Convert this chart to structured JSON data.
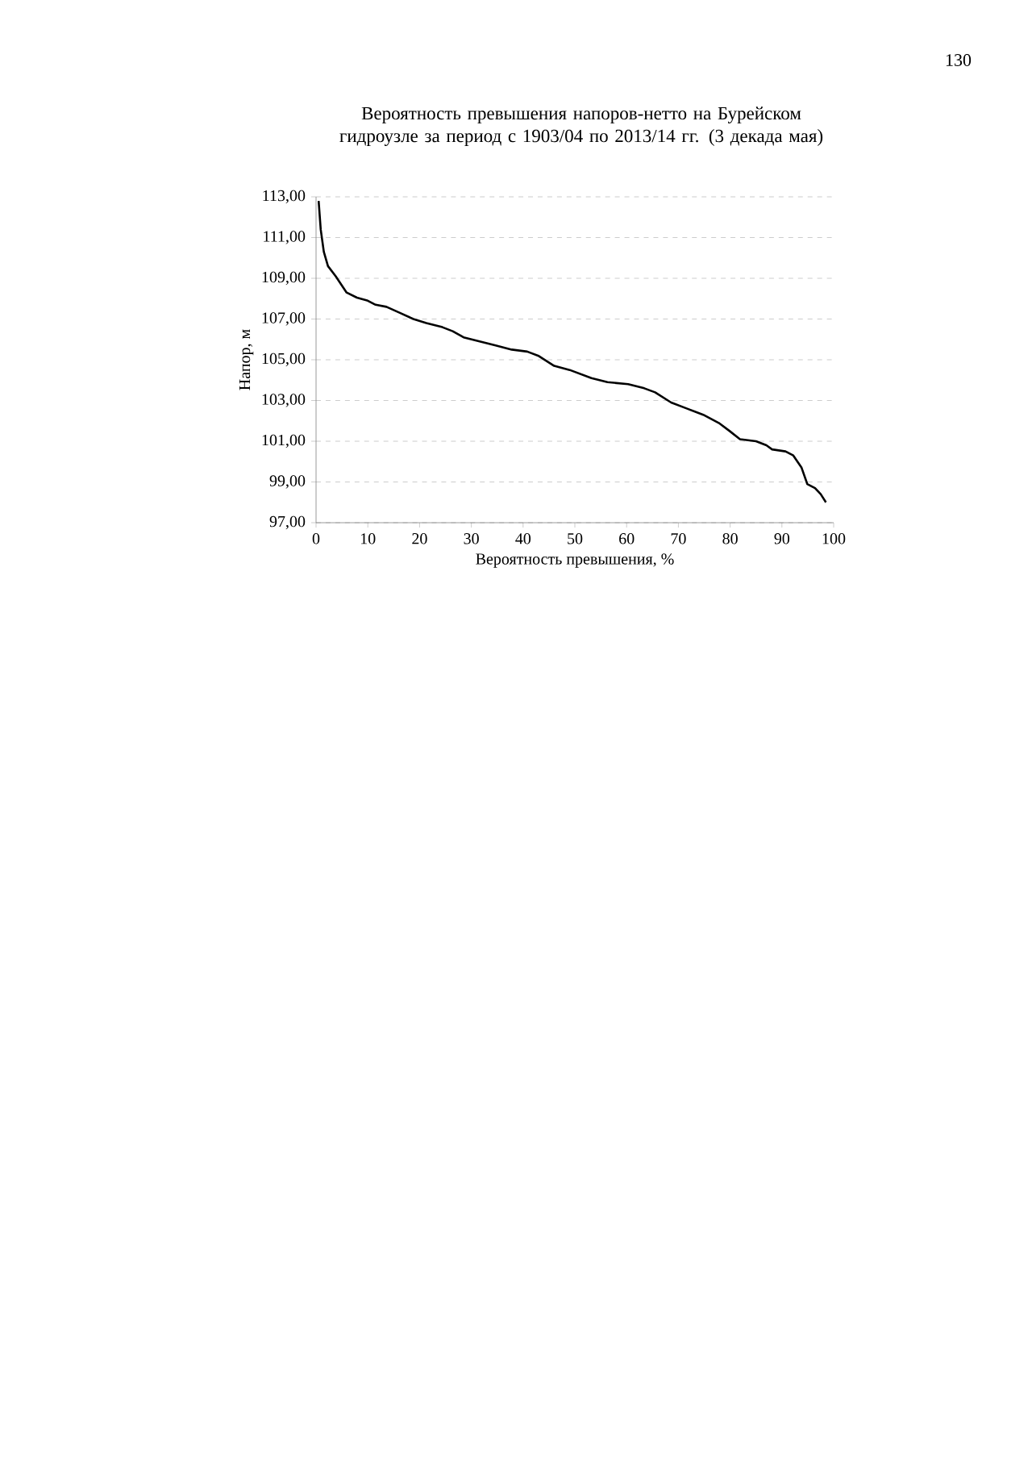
{
  "chart_data": {
    "type": "line",
    "title": "Вероятность превышения напоров-нетто на Бурейском гидроузле за период с 1903/04 по 2013/14 гг. (3 декада мая)",
    "xlabel": "Вероятность превышения, %",
    "ylabel": "Напор, м",
    "annotations": [
      "130"
    ],
    "series": [
      {
        "color": "#000000",
        "x": [
          0.5,
          0.9,
          1.5,
          2.3,
          3.8,
          5.9,
          7.9,
          10,
          11.5,
          13.6,
          16.2,
          18.8,
          21.3,
          24.4,
          26.4,
          28.5,
          31.6,
          34.7,
          37.8,
          40.8,
          42.9,
          46,
          49,
          53.2,
          56.3,
          60.3,
          63.4,
          65.5,
          68.6,
          71.7,
          74.8,
          77.8,
          79.9,
          81.9,
          85,
          87,
          88.1,
          90.7,
          92.2,
          93.8,
          94.9,
          96.4,
          97.5,
          98.5
        ],
        "values": [
          112.8,
          111.4,
          110.3,
          109.6,
          109.1,
          108.3,
          108.05,
          107.9,
          107.7,
          107.6,
          107.3,
          107.0,
          106.8,
          106.6,
          106.4,
          106.1,
          105.9,
          105.7,
          105.5,
          105.4,
          105.2,
          104.7,
          104.5,
          104.1,
          103.9,
          103.8,
          103.6,
          103.4,
          102.9,
          102.6,
          102.3,
          101.9,
          101.5,
          101.1,
          101.0,
          100.8,
          100.6,
          100.5,
          100.3,
          99.7,
          98.9,
          98.7,
          98.4,
          98.0
        ]
      }
    ],
    "xlim": [
      0,
      100
    ],
    "xticks": [
      0,
      10,
      20,
      30,
      40,
      50,
      60,
      70,
      80,
      90,
      100
    ],
    "ylim": [
      97,
      113
    ],
    "yticks": [
      {
        "value": 97,
        "label": "97,00"
      },
      {
        "value": 99,
        "label": "99,00"
      },
      {
        "value": 101,
        "label": "101,00"
      },
      {
        "value": 103,
        "label": "103,00"
      },
      {
        "value": 105,
        "label": "105,00"
      },
      {
        "value": 107,
        "label": "107,00"
      },
      {
        "value": 109,
        "label": "109,00"
      },
      {
        "value": 111,
        "label": "111,00"
      },
      {
        "value": 113,
        "label": "113,00"
      }
    ],
    "grid": "y",
    "marker": "none",
    "line_style": "solid"
  }
}
